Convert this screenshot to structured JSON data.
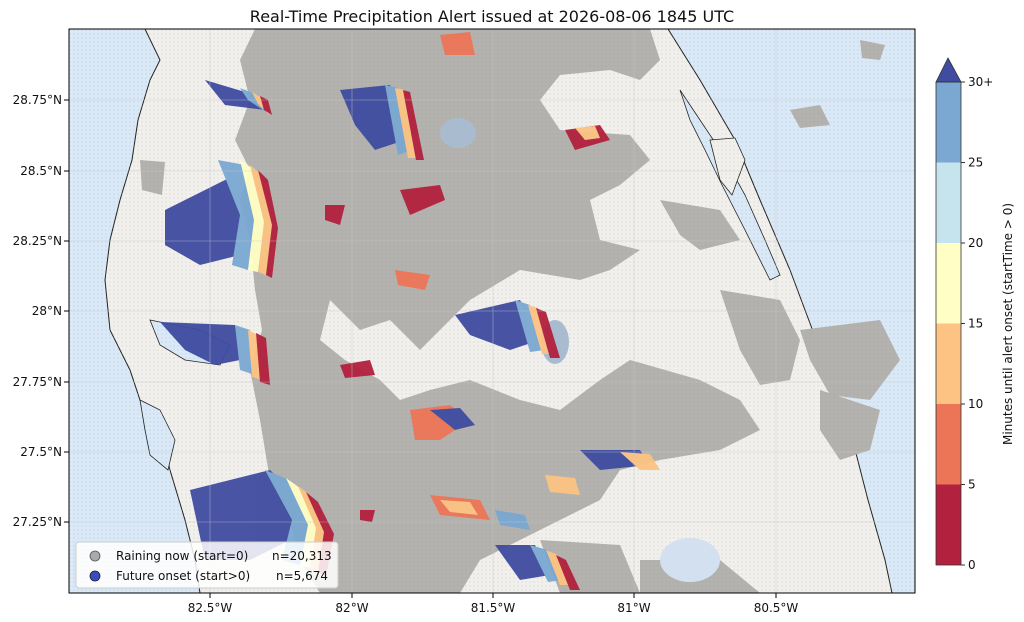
{
  "title": "Real-Time Precipitation Alert issued at 2026-08-06 1845 UTC",
  "y_axis_ticks": [
    "28.75°N",
    "28.5°N",
    "28.25°N",
    "28°N",
    "27.75°N",
    "27.5°N",
    "27.25°N"
  ],
  "x_axis_ticks": [
    "82.5°W",
    "82°W",
    "81.5°W",
    "81°W",
    "80.5°W"
  ],
  "legend": {
    "placement": "lower-left",
    "items": [
      {
        "label": "Raining now (start=0)",
        "count": "n=20,313",
        "color": "#aaaaaa"
      },
      {
        "label": "Future onset (start>0)",
        "count": "n=5,674",
        "color": "#3b4cc0"
      }
    ]
  },
  "colorbar": {
    "label": "Minutes until alert onset (startTime > 0)",
    "tick_labels": [
      "0",
      "5",
      "10",
      "15",
      "20",
      "25",
      "30+"
    ],
    "bins": [
      {
        "from": 0,
        "to": 5,
        "color": "#b2213e"
      },
      {
        "from": 5,
        "to": 10,
        "color": "#ed7557"
      },
      {
        "from": 10,
        "to": 15,
        "color": "#fdc383"
      },
      {
        "from": 15,
        "to": 20,
        "color": "#ffffc5"
      },
      {
        "from": 20,
        "to": 25,
        "color": "#c6e4ed"
      },
      {
        "from": 25,
        "to": 30,
        "color": "#7aa8d2"
      }
    ],
    "extend_color": "#3f4ca0"
  },
  "colors": {
    "ocean": "#d9e9f7",
    "land": "#f1f0ec",
    "raining": "#b4b2ae",
    "lake": "#a9bccf",
    "coast": "#222222",
    "grid": "#c8c8c8"
  }
}
